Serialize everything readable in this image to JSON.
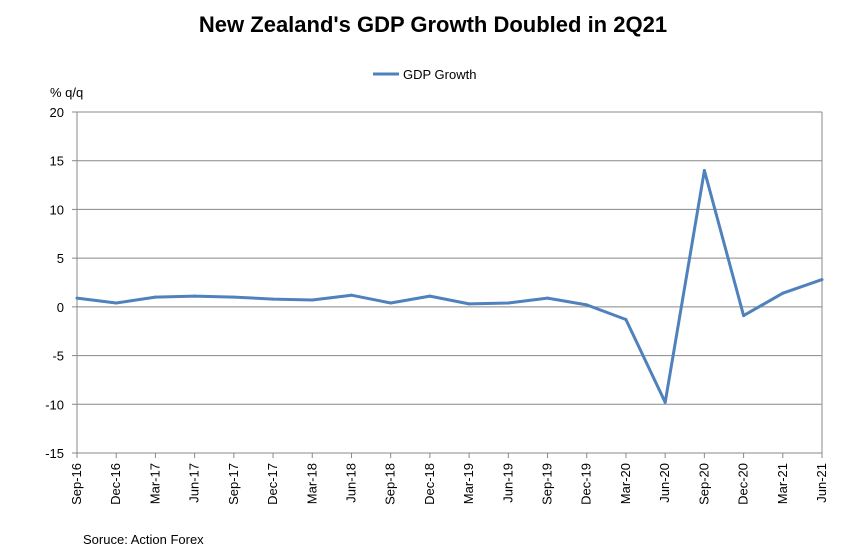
{
  "chart_data": {
    "type": "line",
    "title": "New Zealand's GDP Growth Doubled in 2Q21",
    "ylabel": "% q/q",
    "xlabel": "",
    "ylim": [
      -15,
      20
    ],
    "yticks": [
      20,
      15,
      10,
      5,
      0,
      -5,
      -10,
      -15
    ],
    "grid": true,
    "legend_position": "top-center",
    "categories": [
      "Sep-16",
      "Dec-16",
      "Mar-17",
      "Jun-17",
      "Sep-17",
      "Dec-17",
      "Mar-18",
      "Jun-18",
      "Sep-18",
      "Dec-18",
      "Mar-19",
      "Jun-19",
      "Sep-19",
      "Dec-19",
      "Mar-20",
      "Jun-20",
      "Sep-20",
      "Dec-20",
      "Mar-21",
      "Jun-21"
    ],
    "series": [
      {
        "name": "GDP Growth",
        "color": "#4f81bd",
        "values": [
          0.9,
          0.4,
          1.0,
          1.1,
          1.0,
          0.8,
          0.7,
          1.2,
          0.4,
          1.1,
          0.3,
          0.4,
          0.9,
          0.2,
          -1.3,
          -9.8,
          14.0,
          -0.9,
          1.4,
          2.8
        ]
      }
    ],
    "source": "Soruce: Action Forex"
  }
}
